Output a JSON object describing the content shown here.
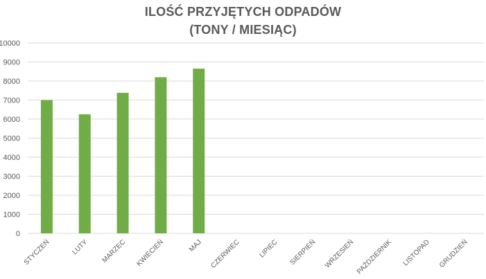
{
  "chart_data": {
    "type": "bar",
    "title": "ILOŚĆ PRZYJĘTYCH ODPADÓW",
    "subtitle": "(TONY / MIESIĄC)",
    "xlabel": "",
    "ylabel": "",
    "categories": [
      "STYCZEŃ",
      "LUTY",
      "MARZEC",
      "KWIECIEŃ",
      "MAJ",
      "CZERWIEC",
      "LIPIEC",
      "SIERPIEŃ",
      "WRZESIEŃ",
      "PAŹDZIERNIK",
      "LISTOPAD",
      "GRUDZIEŃ"
    ],
    "values": [
      7000,
      6250,
      7380,
      8200,
      8650,
      null,
      null,
      null,
      null,
      null,
      null,
      null
    ],
    "ylim": [
      0,
      10000
    ],
    "yticks": [
      0,
      1000,
      2000,
      3000,
      4000,
      5000,
      6000,
      7000,
      8000,
      9000,
      10000
    ],
    "grid": true,
    "legend": "none",
    "bar_color": "#70ad47",
    "grid_color": "#d9d9d9",
    "text_color": "#595959"
  }
}
